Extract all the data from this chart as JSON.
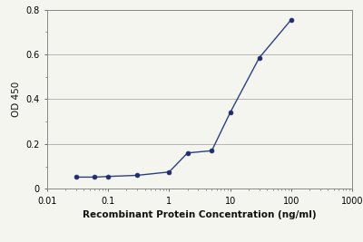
{
  "x_values": [
    0.03,
    0.06,
    0.1,
    0.3,
    1.0,
    2.0,
    5.0,
    10.0,
    30.0,
    100.0
  ],
  "y_values": [
    0.052,
    0.052,
    0.055,
    0.06,
    0.075,
    0.16,
    0.17,
    0.34,
    0.585,
    0.755
  ],
  "xlabel": "Recombinant Protein Concentration (ng/ml)",
  "ylabel": "OD 450",
  "xlim_log": [
    0.01,
    1000
  ],
  "ylim": [
    0,
    0.8
  ],
  "yticks": [
    0,
    0.2,
    0.4,
    0.6,
    0.8
  ],
  "xticks": [
    0.01,
    0.1,
    1,
    10,
    100,
    1000
  ],
  "xtick_labels": [
    "0.01",
    "0.1",
    "1",
    "10",
    "100",
    "1000"
  ],
  "line_color": "#2E3F7F",
  "marker_color": "#1F2D6B",
  "bg_color": "#f5f5f0",
  "plot_bg_color": "#f5f5f0",
  "grid_color": "#aaaaaa",
  "font_size_label": 7.5,
  "font_size_tick": 7,
  "xlabel_fontsize": 7.5,
  "xlabel_bold": true
}
